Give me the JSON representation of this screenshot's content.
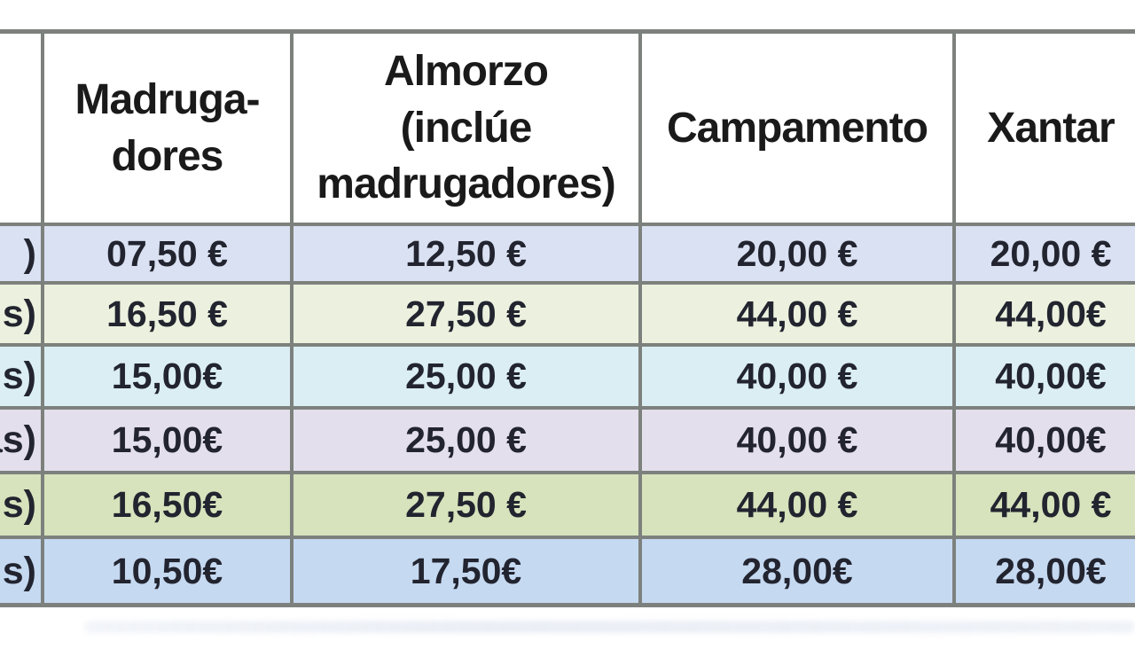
{
  "table": {
    "headers": [
      "",
      "Madruga-\ndores",
      "Almorzo\n(inclúe\nmadrugadores)",
      "Campamento",
      "Xantar"
    ],
    "currency_symbol": "€",
    "rows": [
      {
        "label": ")",
        "madrugadores": "07,50 €",
        "almorzo": "12,50 €",
        "campamento": "20,00 €",
        "xantar": "20,00 €",
        "color": "#d9e1f2"
      },
      {
        "label": "s)",
        "madrugadores": "16,50 €",
        "almorzo": "27,50 €",
        "campamento": "44,00 €",
        "xantar": "44,00€",
        "color": "#ebf1de"
      },
      {
        "label": "s)",
        "madrugadores": "15,00€",
        "almorzo": "25,00 €",
        "campamento": "40,00 €",
        "xantar": "40,00€",
        "color": "#daeef3"
      },
      {
        "label": "as)",
        "madrugadores": "15,00€",
        "almorzo": "25,00 €",
        "campamento": "40,00 €",
        "xantar": "40,00€",
        "color": "#e4dfec"
      },
      {
        "label": "s)",
        "madrugadores": "16,50€",
        "almorzo": "27,50 €",
        "campamento": "44,00 €",
        "xantar": "44,00 €",
        "color": "#d6e3bc"
      },
      {
        "label": "s)",
        "madrugadores": "10,50€",
        "almorzo": "17,50€",
        "campamento": "28,00€",
        "xantar": "28,00€",
        "color": "#c5d9f1"
      }
    ],
    "colors": {
      "border": "#7d817d",
      "header_background": "#ffffff",
      "header_text": "#1a1a1a",
      "number_text": "#22242f"
    }
  }
}
